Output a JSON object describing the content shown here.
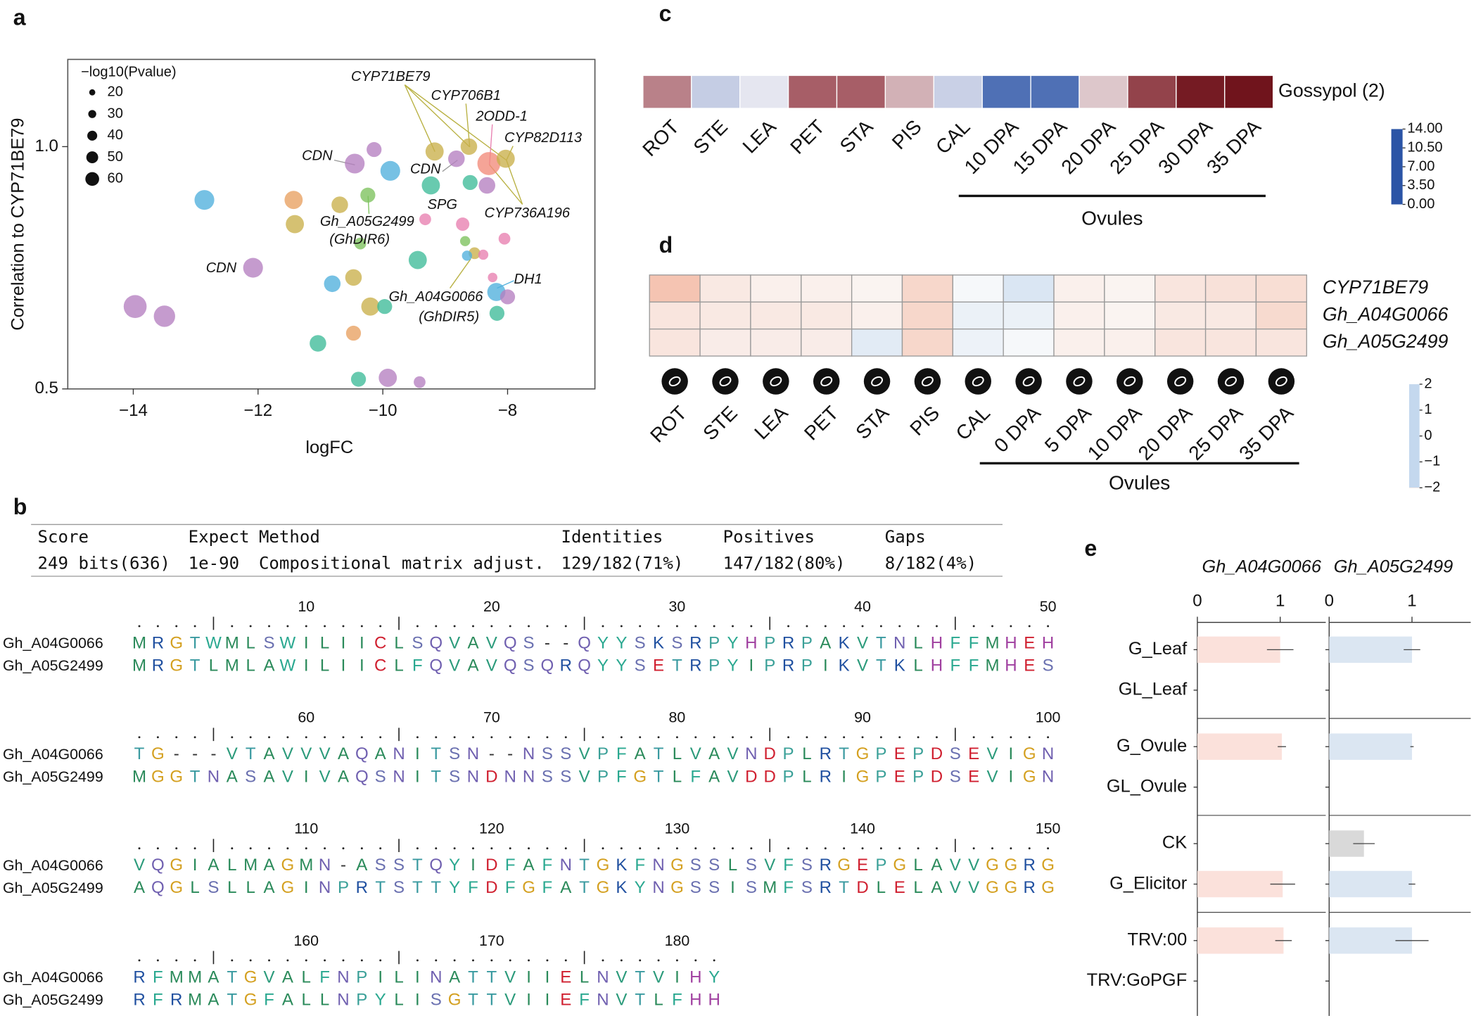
{
  "chart_data": [
    {
      "type": "scatter",
      "panel": "a",
      "xlabel": "logFC",
      "ylabel": "Correlation to CYP71BE79",
      "size_legend_title": "−log10(Pvalue)",
      "size_legend": [
        20,
        30,
        40,
        50,
        60
      ],
      "x": [
        -13.97,
        -13.5,
        -12.86,
        -12.08,
        -11.43,
        -11.41,
        -10.69,
        -10.24,
        -10.45,
        -10.14,
        -9.88,
        -9.17,
        -9.23,
        -8.62,
        -8.82,
        -8.6,
        -8.3,
        -8.03,
        -8.33,
        -9.32,
        -8.72,
        -8.05,
        -10.36,
        -9.44,
        -8.68,
        -8.53,
        -8.65,
        -8.39,
        -8.24,
        -8.18,
        -8.0,
        -8.17,
        -10.81,
        -10.47,
        -10.2,
        -9.97,
        -10.47,
        -11.04,
        -10.39,
        -9.92,
        -9.41
      ],
      "y": [
        0.67,
        0.65,
        0.89,
        0.75,
        0.89,
        0.84,
        0.88,
        0.9,
        0.965,
        0.994,
        0.95,
        0.99,
        0.92,
        1.0,
        0.975,
        0.926,
        0.965,
        0.975,
        0.92,
        0.85,
        0.84,
        0.81,
        0.8,
        0.766,
        0.805,
        0.78,
        0.775,
        0.777,
        0.73,
        0.7,
        0.69,
        0.656,
        0.717,
        0.73,
        0.67,
        0.67,
        0.615,
        0.594,
        0.52,
        0.523,
        0.514
      ],
      "sizes": [
        60,
        55,
        50,
        50,
        45,
        45,
        40,
        35,
        50,
        35,
        50,
        45,
        45,
        40,
        40,
        35,
        60,
        45,
        40,
        25,
        30,
        25,
        25,
        45,
        20,
        25,
        20,
        20,
        18,
        45,
        35,
        35,
        40,
        40,
        45,
        35,
        35,
        40,
        35,
        45,
        25
      ],
      "colors": [
        "#b57fc0",
        "#b57fc0",
        "#4fb0dd",
        "#b57fc0",
        "#e8a060",
        "#c9b04a",
        "#c9b04a",
        "#7cc25c",
        "#b57fc0",
        "#b57fc0",
        "#4fb0dd",
        "#c9b04a",
        "#3dbb98",
        "#c9b04a",
        "#b57fc0",
        "#3dbb98",
        "#f28a7a",
        "#c9b04a",
        "#b57fc0",
        "#e87fb0",
        "#e87fb0",
        "#e87fb0",
        "#7cc25c",
        "#3dbb98",
        "#7cc25c",
        "#c9b04a",
        "#4fb0dd",
        "#e87fb0",
        "#e87fb0",
        "#4fb0dd",
        "#b57fc0",
        "#3dbb98",
        "#4fb0dd",
        "#c9b04a",
        "#c9b04a",
        "#3dbb98",
        "#e8a060",
        "#3dbb98",
        "#3dbb98",
        "#b57fc0",
        "#b57fc0"
      ],
      "xlim": [
        -15.05,
        -6.6
      ],
      "ylim": [
        0.5,
        1.18
      ],
      "xticks": [
        {
          "value": -14,
          "label": "−14"
        },
        {
          "value": -12,
          "label": "−12"
        },
        {
          "value": -10,
          "label": "−10"
        },
        {
          "value": -8,
          "label": "−8"
        }
      ],
      "yticks": [
        0.5,
        {
          "value": 1,
          "label": "1.0"
        }
      ],
      "annotations": [
        {
          "text": "CYP71BE79",
          "color": "#111"
        },
        {
          "text": "CYP706B1",
          "color": "#111"
        },
        {
          "text": "2ODD-1",
          "color": "#111"
        },
        {
          "text": "CYP82D113",
          "color": "#111"
        },
        {
          "text": "CDN",
          "color": "#111"
        },
        {
          "text": "CDN",
          "color": "#111"
        },
        {
          "text": "SPG",
          "color": "#111"
        },
        {
          "text": "CYP736A196",
          "color": "#111"
        },
        {
          "text": "Gh_A05G2499",
          "color": "#a3212c"
        },
        {
          "text": "(GhDIR6)",
          "color": "#a3212c"
        },
        {
          "text": "CDN",
          "color": "#111"
        },
        {
          "text": "Gh_A04G0066",
          "color": "#a3212c"
        },
        {
          "text": "(GhDIR5)",
          "color": "#a3212c"
        },
        {
          "text": "DH1",
          "color": "#111"
        }
      ]
    },
    {
      "type": "heatmap",
      "panel": "c",
      "categories": [
        "ROT",
        "STE",
        "LEA",
        "PET",
        "STA",
        "PIS",
        "CAL",
        "10 DPA",
        "15 DPA",
        "20 DPA",
        "25 DPA",
        "30 DPA",
        "35 DPA"
      ],
      "rows": [
        "Gossypol (2)"
      ],
      "values": [
        [
          9.6,
          4.8,
          6.3,
          10.4,
          10.4,
          8.5,
          5.0,
          1.0,
          1.0,
          8.0,
          11.6,
          13.5,
          13.8
        ]
      ],
      "zlim": [
        0,
        14
      ],
      "zticks": [
        {
          "value": 14,
          "label": "14.00"
        },
        {
          "value": 10.5,
          "label": "10.50"
        },
        {
          "value": 7,
          "label": "7.00"
        },
        {
          "value": 3.5,
          "label": "3.50"
        },
        {
          "value": 0,
          "label": "0.00"
        }
      ],
      "colorscale": [
        [
          0,
          "#2b54a6"
        ],
        [
          3.5,
          "#a9b7da"
        ],
        [
          7,
          "#f4f2f5"
        ],
        [
          10.5,
          "#a55a63"
        ],
        [
          14,
          "#6d1018"
        ]
      ],
      "group": {
        "label": "Ovules",
        "from": 7,
        "to": 12
      }
    },
    {
      "type": "heatmap",
      "panel": "d",
      "categories": [
        "ROT",
        "STE",
        "LEA",
        "PET",
        "STA",
        "PIS",
        "CAL",
        "0 DPA",
        "5 DPA",
        "10 DPA",
        "20 DPA",
        "25 DPA",
        "35 DPA"
      ],
      "rows": [
        "CYP71BE79",
        "Gh_A04G0066",
        "Gh_A05G2499"
      ],
      "values": [
        [
          1.5,
          0.5,
          0.3,
          0.3,
          0.2,
          1.0,
          -0.2,
          -1.2,
          0.3,
          0.2,
          0.6,
          0.7,
          0.8
        ],
        [
          0.6,
          0.5,
          0.5,
          0.5,
          0.3,
          1.0,
          -0.6,
          -0.6,
          0.3,
          0.2,
          0.5,
          0.5,
          0.9
        ],
        [
          0.6,
          0.4,
          0.4,
          0.4,
          -0.9,
          1.0,
          -0.5,
          -0.2,
          0.3,
          0.3,
          0.6,
          0.6,
          0.6
        ]
      ],
      "zlim": [
        -2,
        2
      ],
      "zticks": [
        2,
        1,
        0,
        {
          "value": -1,
          "label": "−1"
        },
        {
          "value": -2,
          "label": "−2"
        }
      ],
      "colorscale": [
        [
          -2,
          "#c4d8ee"
        ],
        [
          0,
          "#fbfbfb"
        ],
        [
          2,
          "#f3b29a"
        ]
      ],
      "group": {
        "label": "Ovules",
        "from": 7,
        "to": 12
      }
    },
    {
      "type": "bar",
      "orientation": "horizontal",
      "panel": "e",
      "categories": [
        "G_Leaf",
        "GL_Leaf",
        "G_Ovule",
        "GL_Ovule",
        "CK",
        "G_Elicitor",
        "TRV:00",
        "TRV:GoPGF"
      ],
      "series": [
        {
          "name": "Gh_A04G0066",
          "name_color": "#d21f2f",
          "colors": [
            "#fbe1db",
            "#fbe1db",
            "#fbe1db",
            "#fbe1db",
            "#fbe1db",
            "#fbe1db",
            "#fbe1db",
            "#fbe1db"
          ],
          "values": [
            1,
            0,
            1.02,
            0,
            0,
            1.03,
            1.04,
            0
          ],
          "errors": [
            0.16,
            0,
            0.05,
            0,
            0,
            0.15,
            0.1,
            0
          ]
        },
        {
          "name": "Gh_A05G2499",
          "name_color": "#1d2a78",
          "colors": [
            "#dbe6f2",
            "#dbe6f2",
            "#dbe6f2",
            "#dbe6f2",
            "#d9d9d9",
            "#dbe6f2",
            "#dbe6f2",
            "#dbe6f2"
          ],
          "values": [
            1,
            0,
            1,
            0,
            0.42,
            1,
            1,
            0
          ],
          "errors": [
            0.1,
            0,
            0.02,
            0,
            0.13,
            0.04,
            0.2,
            0
          ]
        }
      ],
      "xlim": [
        0,
        1.55
      ],
      "xticks": [
        0,
        1
      ]
    }
  ],
  "alignment": {
    "panel": "b",
    "table": {
      "headers": [
        "Score",
        "Expect",
        "Method",
        "Identities",
        "Positives",
        "Gaps"
      ],
      "values": [
        "249 bits(636)",
        "1e-90",
        "Compositional matrix adjust.",
        "129/182(71%)",
        "147/182(80%)",
        "8/182(4%)"
      ]
    },
    "names": [
      "Gh_A04G0066",
      "Gh_A05G2499"
    ],
    "blocks": [
      {
        "ticks": [
          10,
          20,
          30,
          40,
          50
        ],
        "rows": [
          "MRGTWMLSWILIICLSQVAVQS--QYYSKSRPYHPRPAKVTNLHFFMHEH",
          "MRGTLMLAWILIICLFQVAVQSQRQYYSETRPYIPRPIKVTKLHFFMHES"
        ]
      },
      {
        "ticks": [
          60,
          70,
          80,
          90,
          100
        ],
        "rows": [
          "TG---VTAVVVAQANITSN--NSSVPFATLVAVNDPLRTGPEPDSEVIGN",
          "MGGTNASAVIVAQSNITSNDNNSSVPFGTLFAVDDPLRIGPEPDSEVIGN"
        ]
      },
      {
        "ticks": [
          110,
          120,
          130,
          140,
          150
        ],
        "rows": [
          "VQGIALMAGMN-ASSTQYIDFAFNTGKFNGSSLSVFSRGEPGLAVVGGRG",
          "AQGLSLLAGINPRTSTTYFDFGFATGKYNGSSISMFSRTDLELAVVGGRG"
        ]
      },
      {
        "ticks": [
          160,
          170,
          180
        ],
        "rows": [
          "RFMMATGVALFNPILINATTVIIELNVTVIHY",
          "RFRMATGFALLNPYLISGTTVIIEFNVTLFHH"
        ]
      }
    ],
    "residue_colors": {
      "A": "#2a8a5a",
      "V": "#2a9a7a",
      "L": "#2a8a5a",
      "I": "#2a8a5a",
      "M": "#2a8a5a",
      "F": "#2aa890",
      "W": "#2aa890",
      "Y": "#2aa890",
      "G": "#d4a020",
      "P": "#3aa098",
      "S": "#6a70b0",
      "T": "#3a9aa0",
      "N": "#7060b0",
      "Q": "#7060b0",
      "D": "#d02030",
      "E": "#d02030",
      "C": "#d02030",
      "K": "#2050a0",
      "R": "#2050a0",
      "H": "#a040a0",
      "-": "#333333"
    }
  }
}
